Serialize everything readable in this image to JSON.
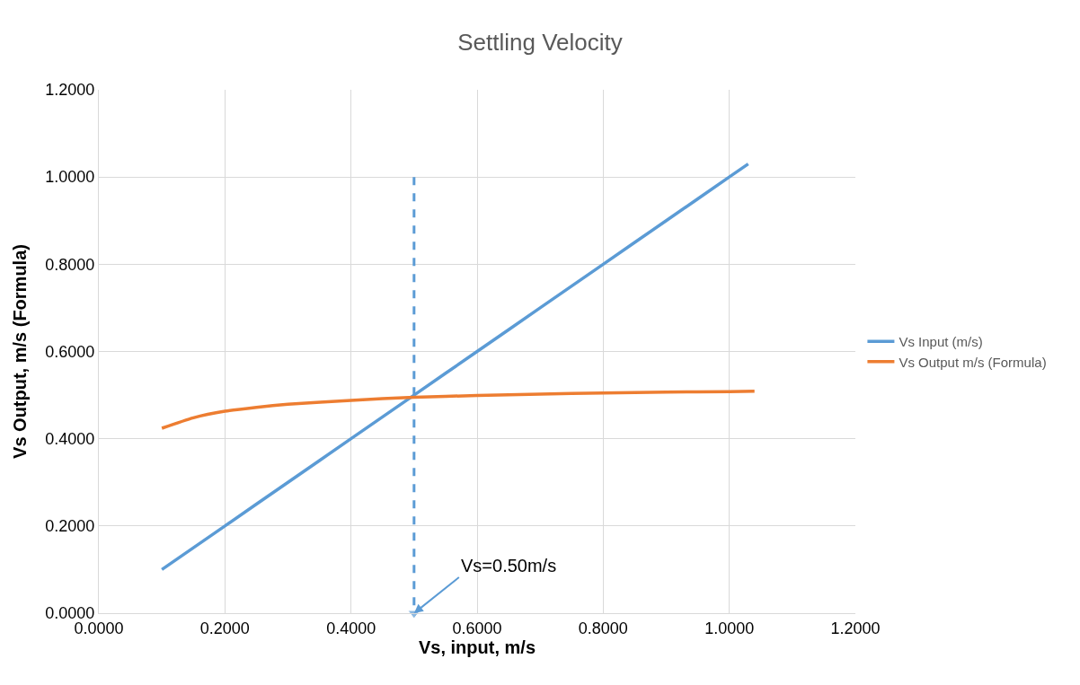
{
  "chart_data": {
    "type": "line",
    "title": "Settling Velocity",
    "xlabel": "Vs, input, m/s",
    "ylabel": "Vs Output, m/s (Formula)",
    "xlim": [
      0,
      1.2
    ],
    "ylim": [
      0,
      1.2
    ],
    "xticks": [
      {
        "value": 0,
        "label": "0.0000"
      },
      {
        "value": 0.2,
        "label": "0.2000"
      },
      {
        "value": 0.4,
        "label": "0.4000"
      },
      {
        "value": 0.6,
        "label": "0.6000"
      },
      {
        "value": 0.8,
        "label": "0.8000"
      },
      {
        "value": 1.0,
        "label": "1.0000"
      },
      {
        "value": 1.2,
        "label": "1.2000"
      }
    ],
    "yticks": [
      {
        "value": 0,
        "label": "0.0000"
      },
      {
        "value": 0.2,
        "label": "0.2000"
      },
      {
        "value": 0.4,
        "label": "0.4000"
      },
      {
        "value": 0.6,
        "label": "0.6000"
      },
      {
        "value": 0.8,
        "label": "0.8000"
      },
      {
        "value": 1.0,
        "label": "1.0000"
      },
      {
        "value": 1.2,
        "label": "1.2000"
      }
    ],
    "grid": true,
    "legend": "right",
    "series": [
      {
        "name": "Vs Input (m/s)",
        "color": "#5b9bd5",
        "x": [
          0.1,
          0.2,
          0.3,
          0.4,
          0.5,
          0.6,
          0.7,
          0.8,
          0.9,
          1.0,
          1.03
        ],
        "values": [
          0.1,
          0.2,
          0.3,
          0.4,
          0.5,
          0.6,
          0.7,
          0.8,
          0.9,
          1.0,
          1.03
        ]
      },
      {
        "name": "Vs Output m/s (Formula)",
        "color": "#ed7d31",
        "x": [
          0.1,
          0.15,
          0.2,
          0.25,
          0.3,
          0.4,
          0.5,
          0.6,
          0.7,
          0.8,
          0.9,
          1.0,
          1.04
        ],
        "values": [
          0.424,
          0.448,
          0.463,
          0.472,
          0.479,
          0.488,
          0.495,
          0.499,
          0.502,
          0.505,
          0.507,
          0.508,
          0.509
        ]
      },
      {
        "color": "#5b9bd5",
        "line_style": "dashed",
        "marker": "triangle",
        "x": [
          0.5,
          0.5
        ],
        "values": [
          1.0,
          0.0
        ]
      }
    ],
    "annotations": [
      {
        "text": "Vs=0.50m/s",
        "x": 0.5,
        "y": 0.0
      }
    ]
  }
}
